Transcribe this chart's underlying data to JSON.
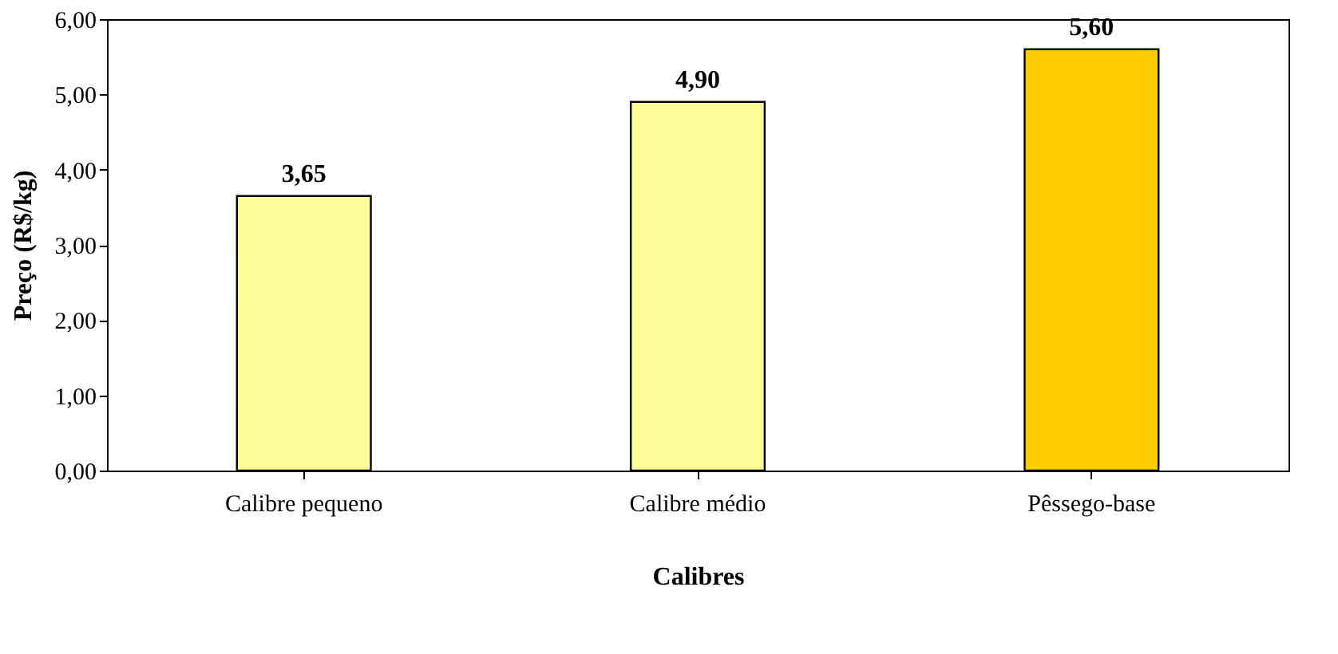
{
  "chart_data": {
    "type": "bar",
    "categories": [
      "Calibre pequeno",
      "Calibre médio",
      "Pêssego-base"
    ],
    "values": [
      3.65,
      4.9,
      5.6
    ],
    "colors": [
      "#ffff99",
      "#ffff99",
      "#ffcc00"
    ],
    "value_labels": [
      "3,65",
      "4,90",
      "5,60"
    ],
    "xlabel": "Calibres",
    "ylabel": "Preço (R$/kg)",
    "ylim": [
      0,
      6
    ],
    "yticks": [
      {
        "value": 0,
        "label": "0,00"
      },
      {
        "value": 1,
        "label": "1,00"
      },
      {
        "value": 2,
        "label": "2,00"
      },
      {
        "value": 3,
        "label": "3,00"
      },
      {
        "value": 4,
        "label": "4,00"
      },
      {
        "value": 5,
        "label": "5,00"
      },
      {
        "value": 6,
        "label": "6,00"
      }
    ],
    "grid": false
  }
}
